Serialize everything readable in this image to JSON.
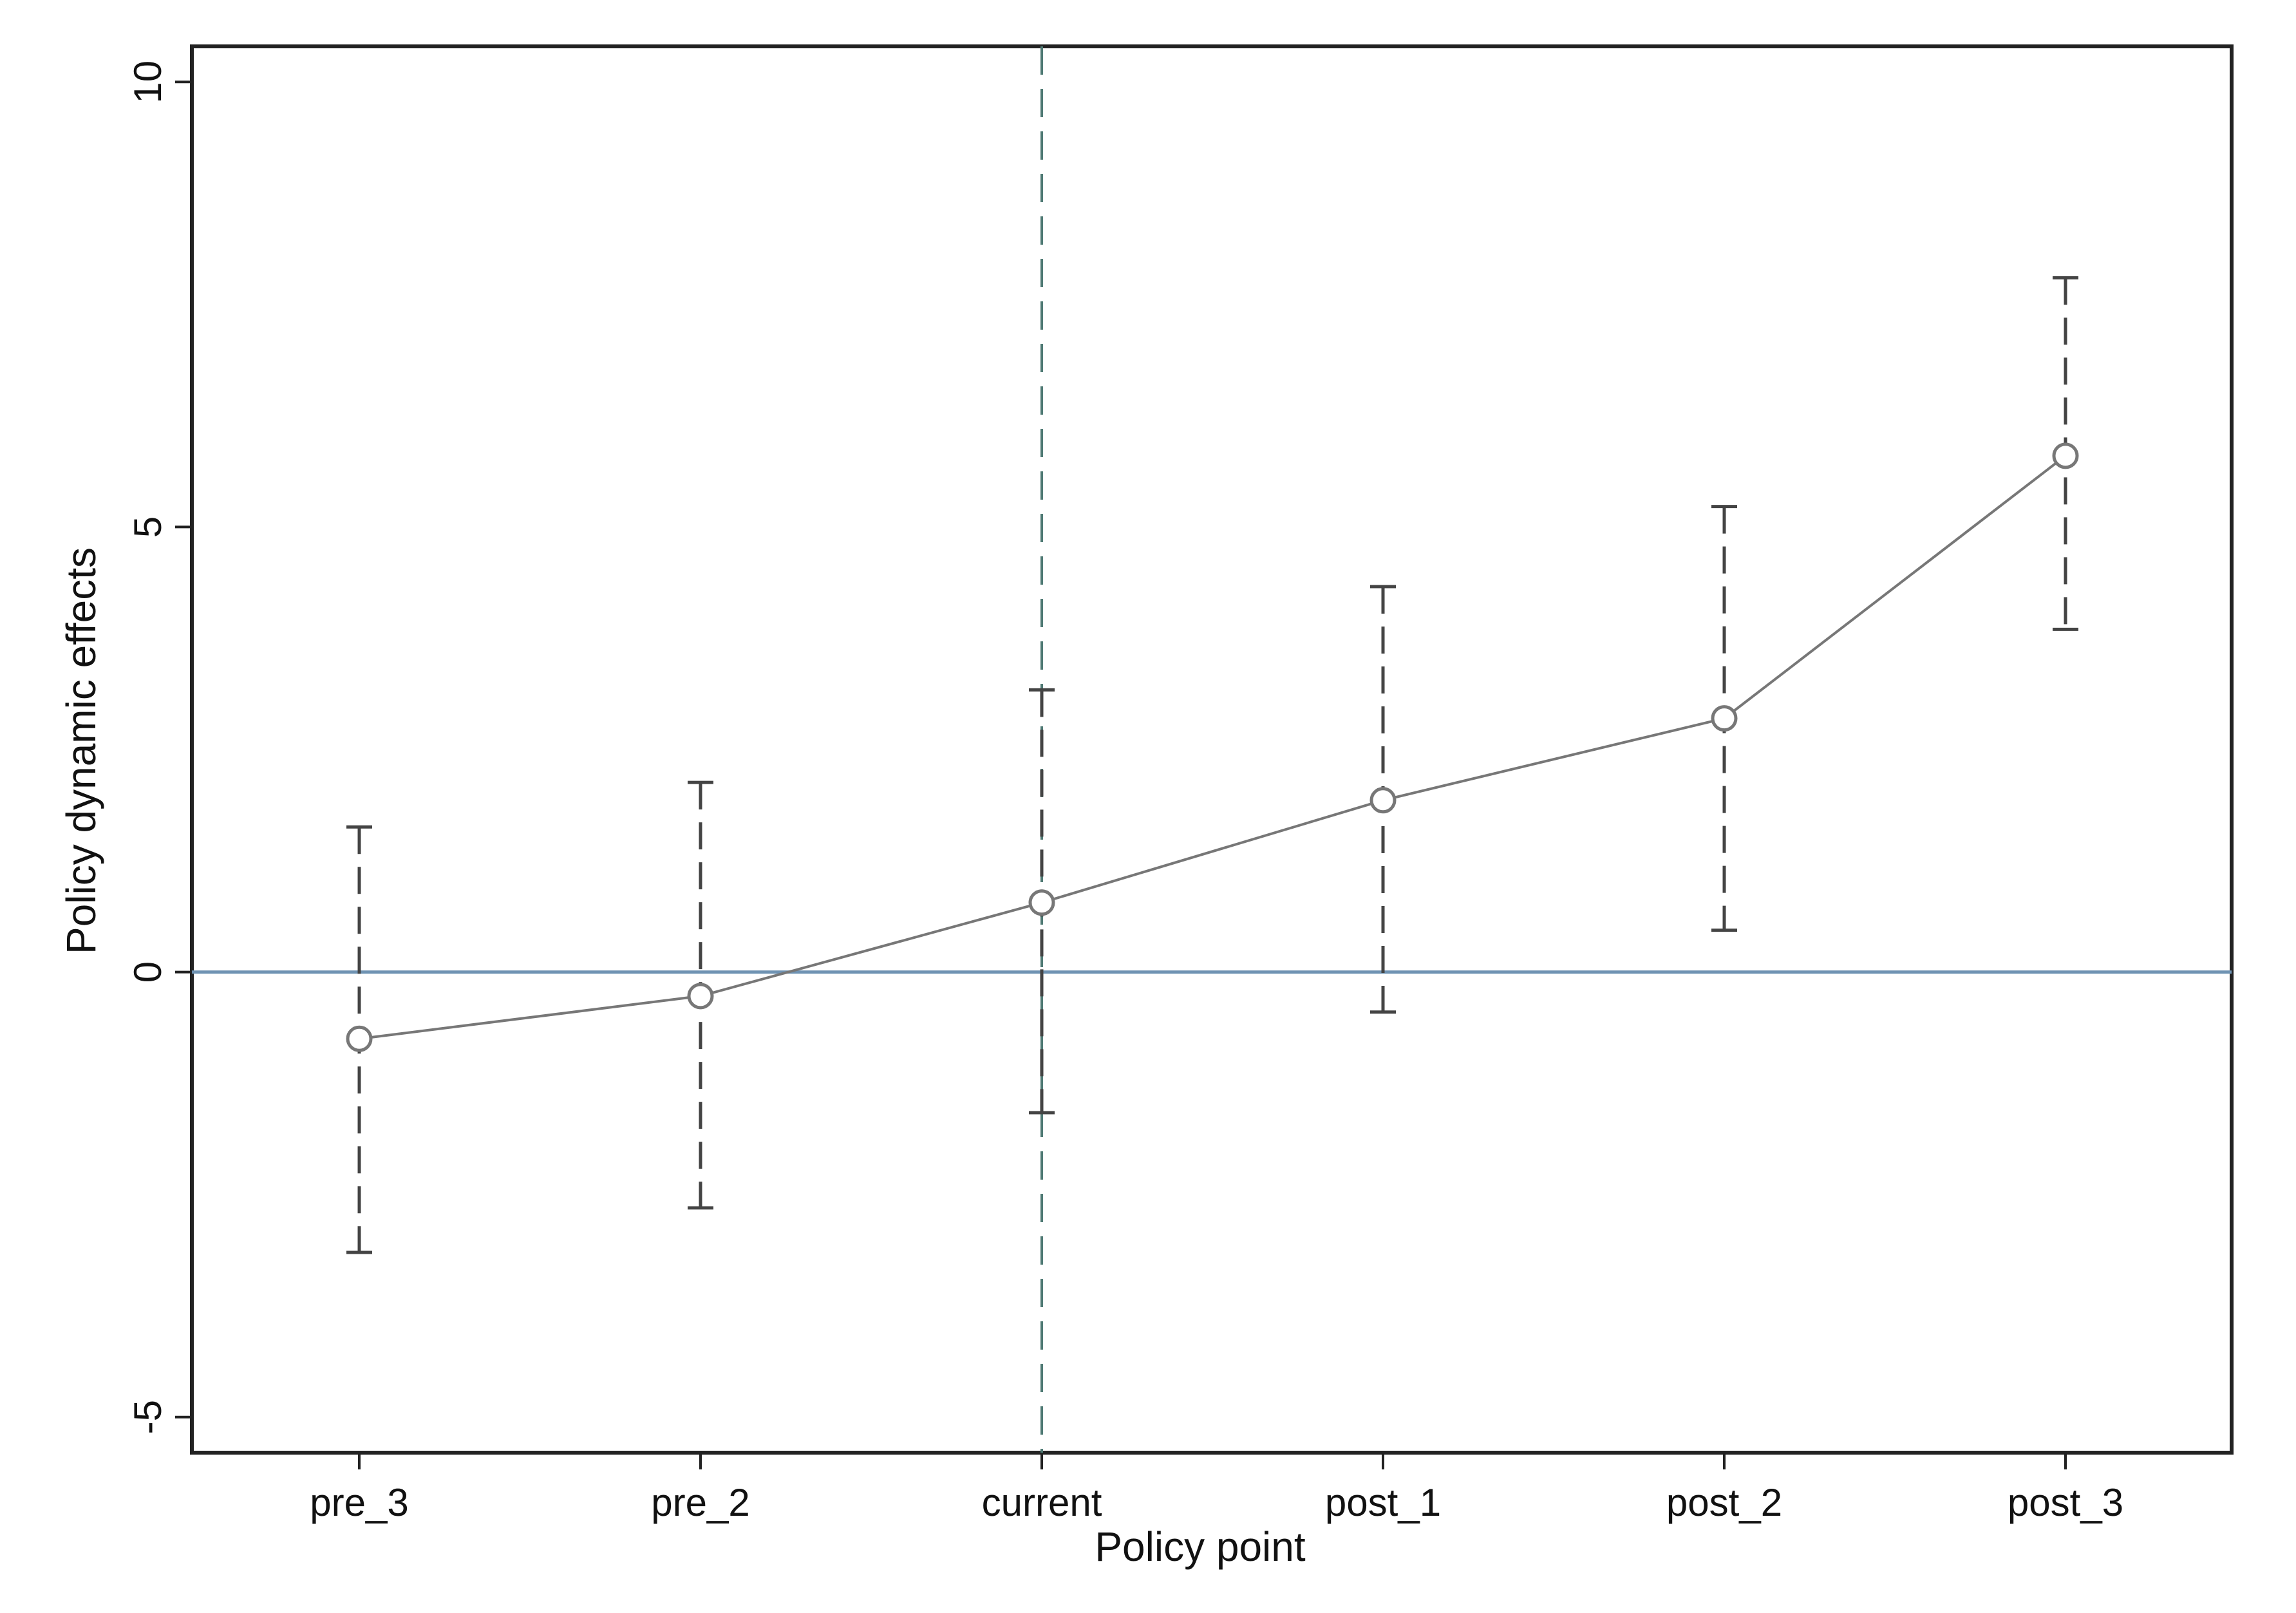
{
  "chart_data": {
    "type": "line",
    "title": "",
    "xlabel": "Policy point",
    "ylabel": "Policy dynamic effects",
    "categories": [
      "pre_3",
      "pre_2",
      "current",
      "post_1",
      "post_2",
      "post_3"
    ],
    "ylim": [
      -5.4,
      10.4
    ],
    "yticks": [
      -5,
      0,
      5,
      10
    ],
    "ytick_labels": [
      "-5",
      "0",
      "5",
      "10"
    ],
    "grid": false,
    "legend": "none",
    "series": [
      {
        "values": [
          -0.75,
          -0.27,
          0.78,
          1.93,
          2.85,
          5.8
        ],
        "ci_low": [
          -3.15,
          -2.65,
          -1.58,
          -0.45,
          0.47,
          3.85
        ],
        "ci_high": [
          1.63,
          2.13,
          3.17,
          4.33,
          5.23,
          7.8
        ]
      }
    ],
    "reference_lines": {
      "horizontal_y": 0,
      "vertical_category": "current"
    },
    "colors": {
      "series_line": "#777777",
      "marker": "#777777",
      "error_bar": "#444444",
      "zero_line": "#6f93b3",
      "vertical_ref": "#4f7a74",
      "frame": "#222222"
    }
  }
}
